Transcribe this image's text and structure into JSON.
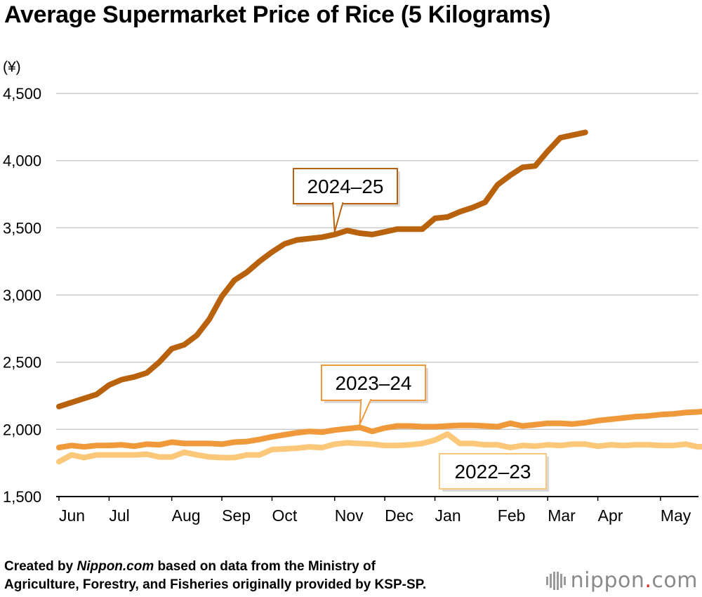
{
  "chart_data": {
    "type": "line",
    "title": "Average Supermarket Price of Rice (5 Kilograms)",
    "ylabel": "(¥)",
    "xlabel": "",
    "ylim": [
      1500,
      4500
    ],
    "y_ticks": [
      1500,
      2000,
      2500,
      3000,
      3500,
      4000,
      4500
    ],
    "y_tick_labels": [
      "1,500",
      "2,000",
      "2,500",
      "3,000",
      "3,500",
      "4,000",
      "4,500"
    ],
    "x_week_range": [
      0,
      51
    ],
    "month_ticks": [
      {
        "label": "Jun",
        "week": 0
      },
      {
        "label": "Jul",
        "week": 4
      },
      {
        "label": "Aug",
        "week": 9
      },
      {
        "label": "Sep",
        "week": 13
      },
      {
        "label": "Oct",
        "week": 17
      },
      {
        "label": "Nov",
        "week": 22
      },
      {
        "label": "Dec",
        "week": 26
      },
      {
        "label": "Jan",
        "week": 30
      },
      {
        "label": "Feb",
        "week": 35
      },
      {
        "label": "Mar",
        "week": 39
      },
      {
        "label": "Apr",
        "week": 43
      },
      {
        "label": "May",
        "week": 48
      }
    ],
    "grid": true,
    "series": [
      {
        "name": "2022–23",
        "color": "#fbc87a",
        "values": [
          1760,
          1810,
          1790,
          1810,
          1810,
          1810,
          1810,
          1815,
          1795,
          1795,
          1830,
          1810,
          1795,
          1790,
          1790,
          1810,
          1810,
          1850,
          1855,
          1860,
          1870,
          1865,
          1890,
          1900,
          1895,
          1890,
          1880,
          1880,
          1885,
          1895,
          1920,
          1965,
          1895,
          1895,
          1885,
          1885,
          1865,
          1880,
          1875,
          1885,
          1880,
          1890,
          1890,
          1875,
          1885,
          1880,
          1885,
          1885,
          1880,
          1880,
          1890,
          1870,
          1875,
          1875,
          1870
        ]
      },
      {
        "name": "2023–24",
        "color": "#f0993a",
        "values": [
          1865,
          1880,
          1870,
          1880,
          1880,
          1885,
          1875,
          1890,
          1885,
          1905,
          1895,
          1895,
          1895,
          1890,
          1905,
          1910,
          1925,
          1945,
          1960,
          1975,
          1985,
          1980,
          1995,
          2005,
          2015,
          1985,
          2010,
          2025,
          2025,
          2020,
          2020,
          2025,
          2030,
          2030,
          2025,
          2020,
          2045,
          2025,
          2035,
          2045,
          2045,
          2040,
          2050,
          2065,
          2075,
          2085,
          2095,
          2100,
          2110,
          2115,
          2125,
          2130,
          2140
        ]
      },
      {
        "name": "2024–25",
        "color": "#b9620e",
        "values": [
          2170,
          2200,
          2230,
          2260,
          2330,
          2370,
          2390,
          2420,
          2500,
          2600,
          2630,
          2700,
          2820,
          2990,
          3110,
          3170,
          3250,
          3320,
          3380,
          3410,
          3420,
          3430,
          3450,
          3480,
          3460,
          3450,
          3470,
          3490,
          3490,
          3490,
          3570,
          3580,
          3620,
          3650,
          3690,
          3820,
          3890,
          3950,
          3960,
          4070,
          4170,
          4190,
          4210
        ]
      }
    ],
    "annotations": [
      {
        "text": "2024–25",
        "series": "2024–25"
      },
      {
        "text": "2023–24",
        "series": "2023–24"
      },
      {
        "text": "2022–23",
        "series": "2022–23"
      }
    ]
  },
  "footer": {
    "prefix": "Created by ",
    "source_name": "Nippon.com",
    "suffix": " based on data from the Ministry of",
    "line2": "Agriculture, Forestry, and Fisheries originally provided by KSP-SP."
  },
  "logo": {
    "text_main": "nippon",
    "text_dot": ".",
    "text_tld": "com",
    "dot_color": "#d9271c",
    "icon": "nippon-wave-icon"
  }
}
